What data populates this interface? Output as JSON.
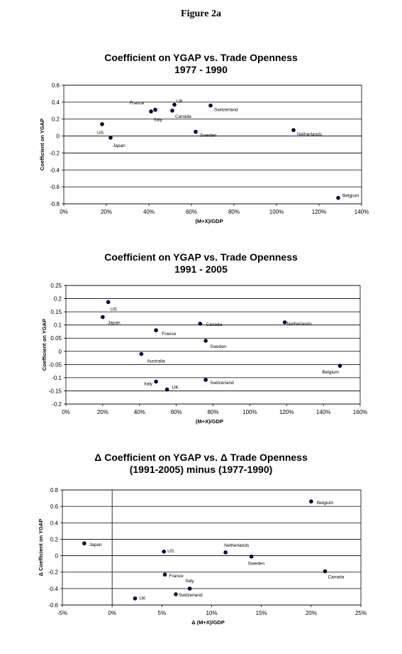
{
  "figure_title": "Figure 2a",
  "chart_data": [
    {
      "type": "scatter",
      "title": "Coefficient on YGAP vs. Trade Openness",
      "subtitle": "1977 - 1990",
      "xlabel": "(M+X)/GDP",
      "ylabel": "Coefficient on YGAP",
      "xlim": [
        0,
        1.4
      ],
      "ylim": [
        -0.8,
        0.6
      ],
      "xticks": [
        0,
        0.2,
        0.4,
        0.6,
        0.8,
        1.0,
        1.2,
        1.4
      ],
      "xtick_labels": [
        "0%",
        "20%",
        "40%",
        "60%",
        "80%",
        "100%",
        "120%",
        "140%"
      ],
      "yticks": [
        -0.8,
        -0.6,
        -0.4,
        -0.2,
        0,
        0.2,
        0.4,
        0.6
      ],
      "ytick_labels": [
        "-0.8",
        "-0.6",
        "-0.4",
        "-0.2",
        "0",
        "0.2",
        "0.4",
        "0.6"
      ],
      "grid": "horizontal",
      "point_color": "#000033",
      "points": [
        {
          "label": "France",
          "x": 0.41,
          "y": 0.29
        },
        {
          "label": "Italy",
          "x": 0.43,
          "y": 0.31
        },
        {
          "label": "UK",
          "x": 0.52,
          "y": 0.37
        },
        {
          "label": "Canada",
          "x": 0.51,
          "y": 0.3
        },
        {
          "label": "Switzerland",
          "x": 0.69,
          "y": 0.36
        },
        {
          "label": "US",
          "x": 0.18,
          "y": 0.14
        },
        {
          "label": "Japan",
          "x": 0.22,
          "y": -0.02
        },
        {
          "label": "Sweden",
          "x": 0.62,
          "y": 0.05
        },
        {
          "label": "Netherlands",
          "x": 1.08,
          "y": 0.07
        },
        {
          "label": "Belgium",
          "x": 1.29,
          "y": -0.73
        }
      ]
    },
    {
      "type": "scatter",
      "title": "Coefficient on YGAP vs. Trade Openness",
      "subtitle": "1991 - 2005",
      "xlabel": "(M+X)/GDP",
      "ylabel": "Coefficient on YGAP",
      "xlim": [
        0,
        1.6
      ],
      "ylim": [
        -0.2,
        0.25
      ],
      "xticks": [
        0,
        0.2,
        0.4,
        0.6,
        0.8,
        1.0,
        1.2,
        1.4,
        1.6
      ],
      "xtick_labels": [
        "0%",
        "20%",
        "40%",
        "60%",
        "80%",
        "100%",
        "120%",
        "140%",
        "160%"
      ],
      "yticks": [
        -0.2,
        -0.15,
        -0.1,
        -0.05,
        0,
        0.05,
        0.1,
        0.15,
        0.2,
        0.25
      ],
      "ytick_labels": [
        "-0.2",
        "-0.15",
        "-0.1",
        "-0.05",
        "0",
        "0.05",
        "0.1",
        "0.15",
        "0.2",
        "0.25"
      ],
      "grid": "horizontal",
      "point_color": "#000033",
      "points": [
        {
          "label": "US",
          "x": 0.23,
          "y": 0.187
        },
        {
          "label": "Japan",
          "x": 0.2,
          "y": 0.13
        },
        {
          "label": "France",
          "x": 0.49,
          "y": 0.08
        },
        {
          "label": "Canada",
          "x": 0.73,
          "y": 0.105
        },
        {
          "label": "Netherlands",
          "x": 1.19,
          "y": 0.11
        },
        {
          "label": "Sweden",
          "x": 0.76,
          "y": 0.04
        },
        {
          "label": "Australia",
          "x": 0.41,
          "y": -0.01
        },
        {
          "label": "Belgium",
          "x": 1.49,
          "y": -0.055
        },
        {
          "label": "Italy",
          "x": 0.49,
          "y": -0.115
        },
        {
          "label": "UK",
          "x": 0.55,
          "y": -0.145
        },
        {
          "label": "Switzerland",
          "x": 0.76,
          "y": -0.108
        }
      ]
    },
    {
      "type": "scatter",
      "title": "Δ Coefficient on YGAP vs. Δ Trade Openness",
      "subtitle": "(1991-2005) minus (1977-1990)",
      "xlabel": "Δ (M+X)/GDP",
      "ylabel": "Δ Coefficient on YGAP",
      "xlim": [
        -0.05,
        0.25
      ],
      "ylim": [
        -0.6,
        0.8
      ],
      "xticks": [
        -0.05,
        0,
        0.05,
        0.1,
        0.15,
        0.2,
        0.25
      ],
      "xtick_labels": [
        "-5%",
        "0%",
        "5%",
        "10%",
        "15%",
        "20%",
        "25%"
      ],
      "yticks": [
        -0.6,
        -0.4,
        -0.2,
        0,
        0.2,
        0.4,
        0.6,
        0.8
      ],
      "ytick_labels": [
        "-0.6",
        "-0.4",
        "-0.2",
        "0",
        "0.2",
        "0.4",
        "0.6",
        "0.8"
      ],
      "grid": "horizontal",
      "point_color": "#000033",
      "points": [
        {
          "label": "Belgium",
          "x": 0.2,
          "y": 0.66
        },
        {
          "label": "Japan",
          "x": -0.028,
          "y": 0.15
        },
        {
          "label": "US",
          "x": 0.052,
          "y": 0.05
        },
        {
          "label": "Netherlands",
          "x": 0.114,
          "y": 0.04
        },
        {
          "label": "Sweden",
          "x": 0.14,
          "y": -0.01
        },
        {
          "label": "Canada",
          "x": 0.214,
          "y": -0.19
        },
        {
          "label": "France",
          "x": 0.053,
          "y": -0.23
        },
        {
          "label": "Italy",
          "x": 0.078,
          "y": -0.4
        },
        {
          "label": "Switzerland",
          "x": 0.064,
          "y": -0.47
        },
        {
          "label": "UK",
          "x": 0.023,
          "y": -0.52
        }
      ]
    }
  ]
}
